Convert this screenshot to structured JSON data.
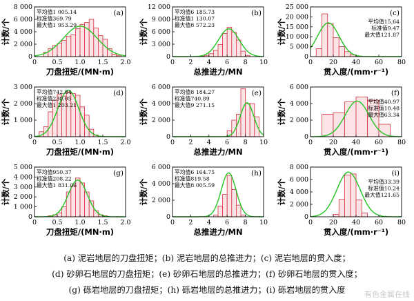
{
  "chart_data": [
    {
      "id": "a",
      "type": "bar",
      "panel_label": "(a)",
      "xlabel": "刀盘扭矩/(MN·m)",
      "ylabel": "计数/个",
      "xlim": [
        0,
        2.0
      ],
      "ylim": [
        0,
        8000
      ],
      "xticks": [
        "0",
        "0.5",
        "1.0",
        "1.5",
        "2.0"
      ],
      "yticks": [
        "0",
        "2 000",
        "4 000",
        "6 000",
        "8 000"
      ],
      "bin_edges": [
        0.2,
        0.3,
        0.4,
        0.5,
        0.6,
        0.7,
        0.8,
        0.9,
        1.0,
        1.1,
        1.2,
        1.3,
        1.4,
        1.5,
        1.6,
        1.7,
        1.8,
        1.9
      ],
      "values": [
        700,
        1300,
        1800,
        2100,
        2600,
        3300,
        3500,
        4500,
        5200,
        5500,
        6000,
        4600,
        3400,
        2800,
        1300,
        400,
        150
      ],
      "fit_curve": {
        "mean": 1.00514,
        "std": 0.36979,
        "peak": 4900
      },
      "stats": [
        "平均值1 005.14",
        "标准值369.79",
        "最大值1 953.29"
      ]
    },
    {
      "id": "b",
      "type": "bar",
      "panel_label": "(b)",
      "xlabel": "总推进力/MN",
      "ylabel": "计数/个",
      "xlim": [
        0,
        10
      ],
      "ylim": [
        0,
        12000
      ],
      "xticks": [
        "0",
        "2",
        "4",
        "6",
        "8",
        "10"
      ],
      "yticks": [
        "0",
        "3 000",
        "6 000",
        "9 000",
        "12 000"
      ],
      "bin_edges": [
        3.0,
        3.5,
        4.0,
        4.5,
        5.0,
        5.5,
        6.0,
        6.5,
        7.0,
        7.5,
        8.0,
        8.5
      ],
      "values": [
        100,
        300,
        700,
        1500,
        2900,
        5600,
        7100,
        5900,
        4000,
        1300,
        300
      ],
      "fit_curve": {
        "mean": 6.18573,
        "std": 1.13007,
        "peak": 6700
      },
      "stats": [
        "平均值6 185.73",
        "标准值1 130.07",
        "最大值8 572.23"
      ]
    },
    {
      "id": "c",
      "type": "bar",
      "panel_label": "(c)",
      "xlabel": "贯入度/(mm·r⁻¹)",
      "ylabel": "计数/个",
      "xlim": [
        0,
        80
      ],
      "ylim": [
        0,
        25000
      ],
      "xticks": [
        "0",
        "20",
        "40",
        "60",
        "80"
      ],
      "yticks": [
        "0",
        "5 000",
        "10 000",
        "15 000",
        "20 000",
        "25 000"
      ],
      "bin_edges": [
        5,
        10,
        15,
        20,
        25,
        30,
        35,
        40,
        45
      ],
      "values": [
        4000,
        21500,
        16500,
        9500,
        5000,
        2500,
        800,
        300
      ],
      "fit_curve": {
        "mean": 15.64,
        "std": 9.47,
        "peak": 17000
      },
      "stats": [
        "平均值15.64",
        "标准值9.47",
        "最大值121.87"
      ]
    },
    {
      "id": "d",
      "type": "bar",
      "panel_label": "(d)",
      "xlabel": "刀盘扭矩/(MN·m)",
      "ylabel": "计数/个",
      "xlim": [
        0,
        2.0
      ],
      "ylim": [
        0,
        3000
      ],
      "xticks": [
        "0",
        "0.5",
        "1.0",
        "1.5",
        "2.0"
      ],
      "yticks": [
        "0",
        "1 000",
        "2 000",
        "3 000"
      ],
      "bin_edges": [
        0.1,
        0.2,
        0.3,
        0.4,
        0.5,
        0.6,
        0.7,
        0.8,
        0.9,
        1.0,
        1.1,
        1.2,
        1.3,
        1.4
      ],
      "values": [
        300,
        600,
        1500,
        2200,
        2550,
        2450,
        2700,
        2600,
        2500,
        1800,
        1300,
        450,
        100
      ],
      "fit_curve": {
        "mean": 0.74284,
        "std": 0.23005,
        "peak": 2800
      },
      "stats": [
        "平均值742.84",
        "标准值230.05",
        "最大值1 203.21"
      ]
    },
    {
      "id": "e",
      "type": "bar",
      "panel_label": "(e)",
      "xlabel": "总推进力/MN",
      "ylabel": "计数/个",
      "xlim": [
        0,
        10
      ],
      "ylim": [
        0,
        6000
      ],
      "xticks": [
        "0",
        "2",
        "4",
        "6",
        "8",
        "10"
      ],
      "yticks": [
        "0",
        "2 000",
        "4 000",
        "6 000"
      ],
      "bin_edges": [
        6.0,
        6.5,
        7.0,
        7.5,
        8.0,
        8.5,
        9.0,
        9.5
      ],
      "values": [
        700,
        2000,
        2700,
        5800,
        4000,
        4000,
        2400
      ],
      "fit_curve": {
        "mean": 8.18427,
        "std": 0.74089,
        "peak": 4100
      },
      "stats": [
        "平均值8 184.27",
        "标准值740.89",
        "最大值9 271.15"
      ]
    },
    {
      "id": "f",
      "type": "bar",
      "panel_label": "(f)",
      "xlabel": "贯入度/(mm·r⁻¹)",
      "ylabel": "计数/个",
      "xlim": [
        0,
        80
      ],
      "ylim": [
        0,
        6000
      ],
      "xticks": [
        "0",
        "20",
        "40",
        "60",
        "80"
      ],
      "yticks": [
        "0",
        "2 000",
        "4 000",
        "6 000"
      ],
      "bin_edges": [
        10,
        20,
        30,
        40,
        50,
        60,
        70
      ],
      "values": [
        2700,
        2900,
        4200,
        4800,
        4400,
        1500
      ],
      "fit_curve": {
        "mean": 40.97,
        "std": 10.48,
        "peak": 4300
      },
      "stats": [
        "平均值40.97",
        "标准值10.48",
        "最大值63.34"
      ]
    },
    {
      "id": "g",
      "type": "bar",
      "panel_label": "(g)",
      "xlabel": "刀盘扭矩/(MN·m)",
      "ylabel": "计数/个",
      "xlim": [
        0,
        2.0
      ],
      "ylim": [
        0,
        5000
      ],
      "xticks": [
        "0",
        "0.5",
        "1.0",
        "1.5",
        "2.0"
      ],
      "yticks": [
        "0",
        "1 000",
        "2 000",
        "3 000",
        "4 000",
        "5 000"
      ],
      "bin_edges": [
        0.3,
        0.4,
        0.5,
        0.6,
        0.7,
        0.8,
        0.9,
        1.0,
        1.1,
        1.2,
        1.3,
        1.4,
        1.5,
        1.6
      ],
      "values": [
        100,
        200,
        400,
        1000,
        2500,
        3100,
        3900,
        3400,
        2500,
        1600,
        600,
        200,
        100
      ],
      "fit_curve": {
        "mean": 0.95037,
        "std": 0.20822,
        "peak": 3700
      },
      "stats": [
        "平均值950.37",
        "标准值208.22",
        "最大值1 831.06"
      ]
    },
    {
      "id": "h",
      "type": "bar",
      "panel_label": "(h)",
      "xlabel": "总推进力/MN",
      "ylabel": "计数/个",
      "xlim": [
        0,
        10
      ],
      "ylim": [
        0,
        6000
      ],
      "xticks": [
        "0",
        "2",
        "4",
        "6",
        "8",
        "10"
      ],
      "yticks": [
        "0",
        "2 000",
        "4 000",
        "6 000"
      ],
      "bin_edges": [
        4.5,
        5.0,
        5.5,
        6.0,
        6.5,
        7.0,
        7.5,
        8.0
      ],
      "values": [
        200,
        1300,
        2700,
        5000,
        3300,
        1400,
        200
      ],
      "fit_curve": {
        "mean": 6.16475,
        "std": 0.81958,
        "peak": 5300
      },
      "stats": [
        "平均值6 164.75",
        "标准值819.58",
        "最大值8 005.59"
      ]
    },
    {
      "id": "i",
      "type": "bar",
      "panel_label": "(i)",
      "xlabel": "贯入度/(mm·r⁻¹)",
      "ylabel": "计数/个",
      "xlim": [
        0,
        80
      ],
      "ylim": [
        0,
        8000
      ],
      "xticks": [
        "0",
        "20",
        "40",
        "60",
        "80"
      ],
      "yticks": [
        "0",
        "2 000",
        "4 000",
        "6 000",
        "8 000"
      ],
      "bin_edges": [
        20,
        25,
        30,
        35,
        40,
        45,
        50
      ],
      "values": [
        400,
        2800,
        6700,
        6900,
        2700,
        600
      ],
      "fit_curve": {
        "mean": 33.39,
        "std": 10.24,
        "peak": 7200
      },
      "stats": [
        "平均值33.39",
        "标准值10.24",
        "最大值121.65"
      ]
    }
  ],
  "caption": {
    "line1": "(a) 泥岩地层的刀盘扭矩；(b) 泥岩地层的总推进力；(c) 泥岩地层的贯入度；",
    "line2": "(d) 砂卵石地层的刀盘扭矩；(e) 砂卵石地层的总推进力；(f) 砂卵石地层的贯入度；",
    "line3": "(g) 砾岩地层的刀盘扭矩；(h) 砾岩地层的总推进力；(i) 砾岩地层的贯入度"
  },
  "watermark": "有色金属在线",
  "colors": {
    "bar_fill": "#fbe3e6",
    "bar_stroke": "#d2303c",
    "fit_curve": "#22c322",
    "axis": "#000000"
  }
}
